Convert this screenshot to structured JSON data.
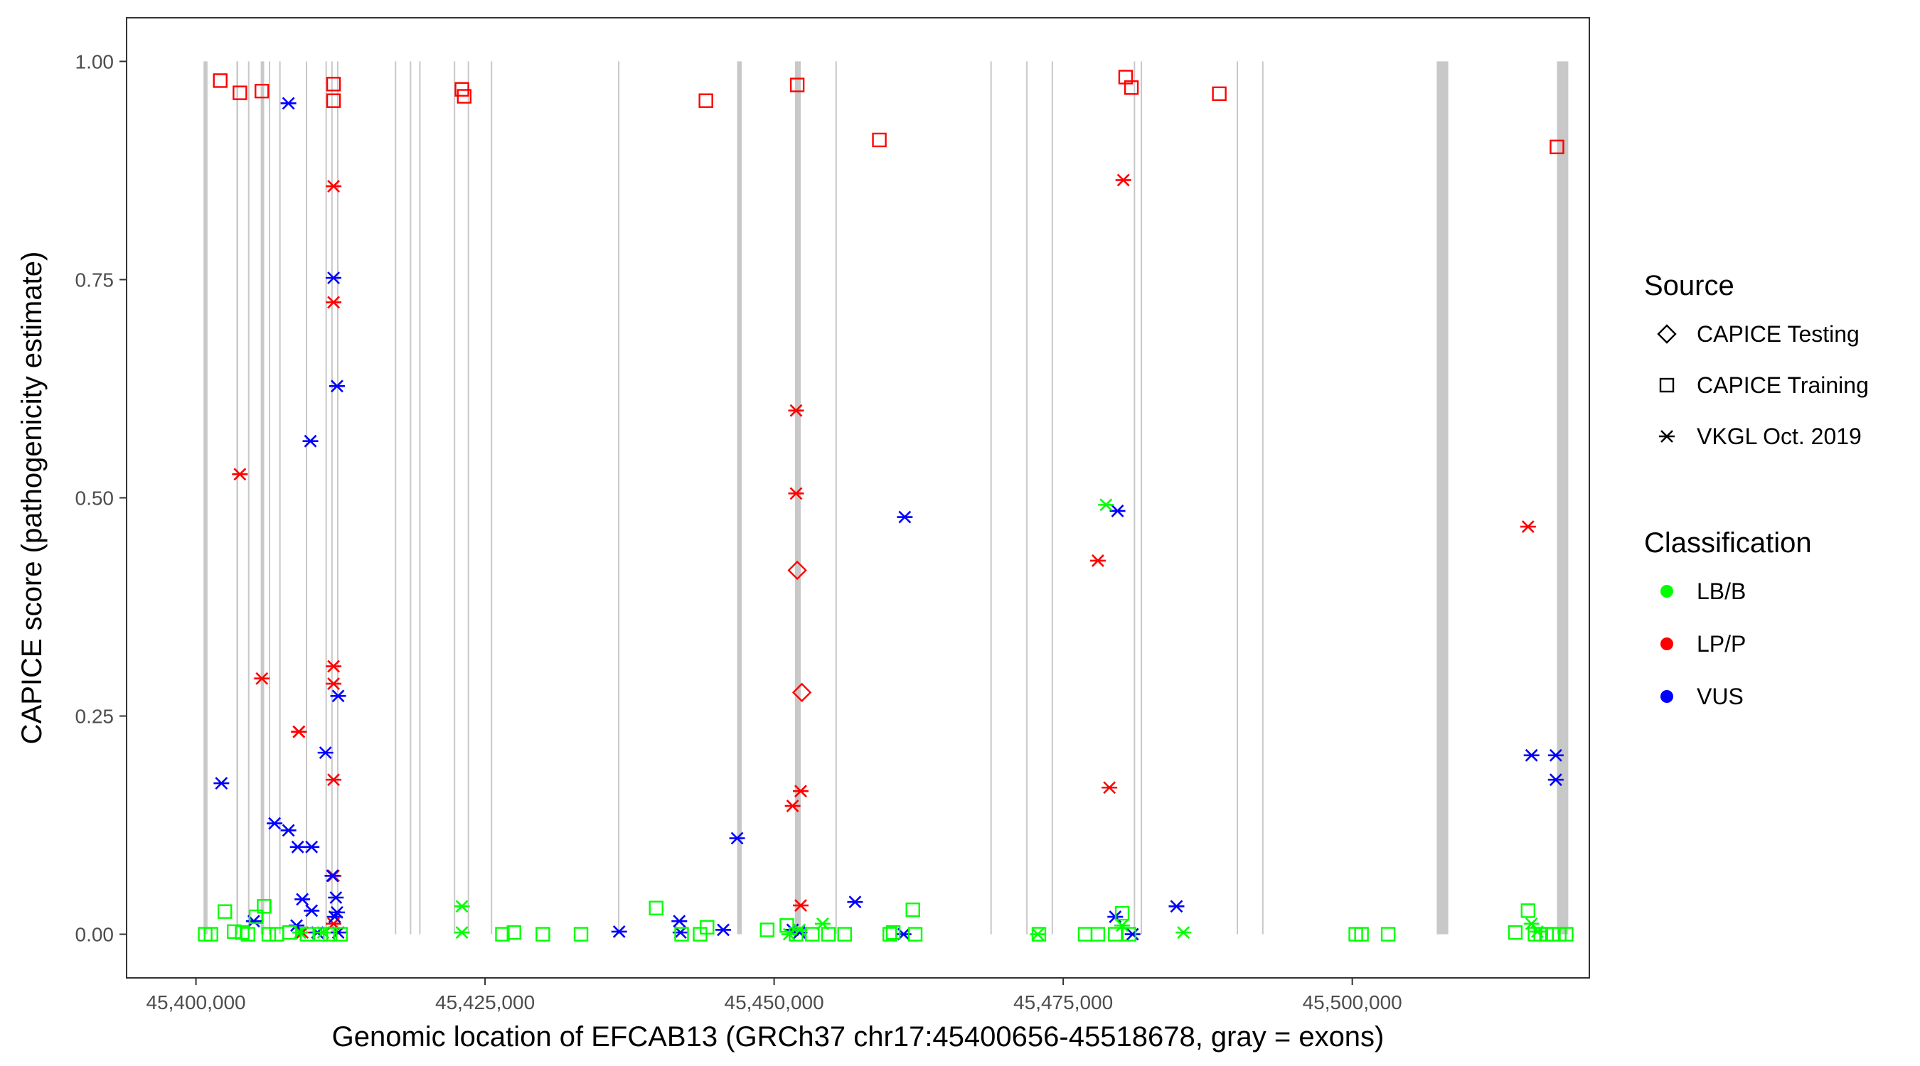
{
  "chart_data": {
    "type": "scatter",
    "title": "",
    "xlabel": "Genomic location of EFCAB13 (GRCh37 chr17:45400656-45518678, gray = exons)",
    "ylabel": "CAPICE score (pathogenicity estimate)",
    "xlim": [
      45394000,
      45520500
    ],
    "ylim": [
      -0.05,
      1.05
    ],
    "x_ticks": [
      45400000,
      45425000,
      45450000,
      45475000,
      45500000
    ],
    "x_tick_labels": [
      "45,400,000",
      "45,425,000",
      "45,450,000",
      "45,475,000",
      "45,500,000"
    ],
    "y_ticks": [
      0,
      0.25,
      0.5,
      0.75,
      1
    ],
    "y_tick_labels": [
      "0.00",
      "0.25",
      "0.50",
      "0.75",
      "1.00"
    ],
    "grid": false,
    "legend_position": "right",
    "exons": [
      [
        45400656,
        45401000
      ],
      [
        45403500,
        45403650
      ],
      [
        45404500,
        45404600
      ],
      [
        45405600,
        45405900
      ],
      [
        45406300,
        45406400
      ],
      [
        45407200,
        45407300
      ],
      [
        45409500,
        45409600
      ],
      [
        45411200,
        45411300
      ],
      [
        45411700,
        45411800
      ],
      [
        45412200,
        45412300
      ],
      [
        45417200,
        45417300
      ],
      [
        45418500,
        45418600
      ],
      [
        45419300,
        45419400
      ],
      [
        45422300,
        45422400
      ],
      [
        45423500,
        45423600
      ],
      [
        45425500,
        45425600
      ],
      [
        45436500,
        45436600
      ],
      [
        45446800,
        45447200
      ],
      [
        45451800,
        45452300
      ],
      [
        45455300,
        45455400
      ],
      [
        45468700,
        45468800
      ],
      [
        45471800,
        45471900
      ],
      [
        45474000,
        45474100
      ],
      [
        45481100,
        45481200
      ],
      [
        45481700,
        45481800
      ],
      [
        45490000,
        45490100
      ],
      [
        45492200,
        45492300
      ],
      [
        45507300,
        45508300
      ],
      [
        45517700,
        45518678
      ]
    ],
    "legend": {
      "source": {
        "title": "Source",
        "entries": [
          {
            "label": "CAPICE Testing",
            "shape": "diamond"
          },
          {
            "label": "CAPICE Training",
            "shape": "square"
          },
          {
            "label": "VKGL Oct. 2019",
            "shape": "asterisk"
          }
        ]
      },
      "classification": {
        "title": "Classification",
        "entries": [
          {
            "label": "LB/B",
            "color": "#00ff00"
          },
          {
            "label": "LP/P",
            "color": "#ff0000"
          },
          {
            "label": "VUS",
            "color": "#0000ff"
          }
        ]
      }
    },
    "series": [
      {
        "source": "CAPICE Training",
        "classification": "LP/P",
        "shape": "square",
        "color": "#ff0000",
        "points": [
          [
            45402100,
            0.978
          ],
          [
            45403800,
            0.964
          ],
          [
            45405700,
            0.966
          ],
          [
            45411900,
            0.974
          ],
          [
            45411900,
            0.955
          ],
          [
            45423000,
            0.968
          ],
          [
            45423200,
            0.96
          ],
          [
            45444100,
            0.955
          ],
          [
            45452000,
            0.973
          ],
          [
            45459100,
            0.91
          ],
          [
            45480400,
            0.982
          ],
          [
            45480900,
            0.97
          ],
          [
            45488500,
            0.963
          ],
          [
            45517700,
            0.902
          ]
        ]
      },
      {
        "source": "VKGL Oct. 2019",
        "classification": "LP/P",
        "shape": "asterisk",
        "color": "#ff0000",
        "points": [
          [
            45411900,
            0.857
          ],
          [
            45411900,
            0.724
          ],
          [
            45403800,
            0.527
          ],
          [
            45405700,
            0.293
          ],
          [
            45411900,
            0.307
          ],
          [
            45411900,
            0.287
          ],
          [
            45408900,
            0.232
          ],
          [
            45408900,
            0.232
          ],
          [
            45411900,
            0.177
          ],
          [
            45411900,
            0.067
          ],
          [
            45411900,
            0.012
          ],
          [
            45409200,
            0.002
          ],
          [
            45451900,
            0.6
          ],
          [
            45451900,
            0.505
          ],
          [
            45452300,
            0.164
          ],
          [
            45451600,
            0.147
          ],
          [
            45452300,
            0.033
          ],
          [
            45480200,
            0.864
          ],
          [
            45478000,
            0.428
          ],
          [
            45479000,
            0.168
          ],
          [
            45515200,
            0.467
          ]
        ]
      },
      {
        "source": "CAPICE Testing",
        "classification": "LP/P",
        "shape": "diamond",
        "color": "#ff0000",
        "points": [
          [
            45452000,
            0.417
          ],
          [
            45452400,
            0.277
          ]
        ]
      },
      {
        "source": "VKGL Oct. 2019",
        "classification": "VUS",
        "shape": "asterisk",
        "color": "#0000ff",
        "points": [
          [
            45408000,
            0.952
          ],
          [
            45411900,
            0.752
          ],
          [
            45412200,
            0.628
          ],
          [
            45409900,
            0.565
          ],
          [
            45412300,
            0.273
          ],
          [
            45411200,
            0.208
          ],
          [
            45402200,
            0.173
          ],
          [
            45406800,
            0.127
          ],
          [
            45408000,
            0.119
          ],
          [
            45408800,
            0.1
          ],
          [
            45410000,
            0.1
          ],
          [
            45411800,
            0.067
          ],
          [
            45409200,
            0.04
          ],
          [
            45412100,
            0.042
          ],
          [
            45410000,
            0.027
          ],
          [
            45412200,
            0.025
          ],
          [
            45412000,
            0.02
          ],
          [
            45405000,
            0.015
          ],
          [
            45408700,
            0.01
          ],
          [
            45410500,
            0.002
          ],
          [
            45412300,
            0.002
          ],
          [
            45436600,
            0.003
          ],
          [
            45441800,
            0.015
          ],
          [
            45445600,
            0.005
          ],
          [
            45441900,
            0.002
          ],
          [
            45446800,
            0.11
          ],
          [
            45451600,
            0.005
          ],
          [
            45452200,
            0.002
          ],
          [
            45457000,
            0.037
          ],
          [
            45461300,
            0.478
          ],
          [
            45461200,
            0.0
          ],
          [
            45479700,
            0.485
          ],
          [
            45479500,
            0.02
          ],
          [
            45481000,
            0.0
          ],
          [
            45484800,
            0.032
          ],
          [
            45515500,
            0.205
          ],
          [
            45517600,
            0.205
          ],
          [
            45517600,
            0.177
          ]
        ]
      },
      {
        "source": "VKGL Oct. 2019",
        "classification": "LB/B",
        "shape": "asterisk",
        "color": "#00ff00",
        "points": [
          [
            45423000,
            0.032
          ],
          [
            45423000,
            0.002
          ],
          [
            45452200,
            0.005
          ],
          [
            45454200,
            0.012
          ],
          [
            45472800,
            0.0
          ],
          [
            45478700,
            0.492
          ],
          [
            45480100,
            0.01
          ],
          [
            45485400,
            0.002
          ],
          [
            45515500,
            0.012
          ],
          [
            45516000,
            0.003
          ],
          [
            45409000,
            0.002
          ],
          [
            45411000,
            0.002
          ],
          [
            45451300,
            0.0
          ]
        ]
      },
      {
        "source": "CAPICE Training",
        "classification": "LB/B",
        "shape": "square",
        "color": "#00ff00",
        "points": [
          [
            45400800,
            0.0
          ],
          [
            45401300,
            0.0
          ],
          [
            45402500,
            0.026
          ],
          [
            45403300,
            0.003
          ],
          [
            45404000,
            0.002
          ],
          [
            45404500,
            0.0
          ],
          [
            45405200,
            0.02
          ],
          [
            45405900,
            0.032
          ],
          [
            45406300,
            0.0
          ],
          [
            45407000,
            0.0
          ],
          [
            45408100,
            0.002
          ],
          [
            45409600,
            0.0
          ],
          [
            45410800,
            0.0
          ],
          [
            45411600,
            0.0
          ],
          [
            45412500,
            0.0
          ],
          [
            45426500,
            0.0
          ],
          [
            45427500,
            0.002
          ],
          [
            45430000,
            0.0
          ],
          [
            45433300,
            0.0
          ],
          [
            45439800,
            0.03
          ],
          [
            45442000,
            0.0
          ],
          [
            45443600,
            0.0
          ],
          [
            45444200,
            0.008
          ],
          [
            45449400,
            0.005
          ],
          [
            45451100,
            0.01
          ],
          [
            45451900,
            0.0
          ],
          [
            45453300,
            0.0
          ],
          [
            45454700,
            0.0
          ],
          [
            45456100,
            0.0
          ],
          [
            45460000,
            0.0
          ],
          [
            45460300,
            0.002
          ],
          [
            45462000,
            0.028
          ],
          [
            45462200,
            0.0
          ],
          [
            45472900,
            0.0
          ],
          [
            45476900,
            0.0
          ],
          [
            45478000,
            0.0
          ],
          [
            45479500,
            0.0
          ],
          [
            45480100,
            0.024
          ],
          [
            45480700,
            0.0
          ],
          [
            45500300,
            0.0
          ],
          [
            45500800,
            0.0
          ],
          [
            45503100,
            0.0
          ],
          [
            45514100,
            0.002
          ],
          [
            45515200,
            0.027
          ],
          [
            45515800,
            0.0
          ],
          [
            45516300,
            0.0
          ],
          [
            45516800,
            0.0
          ],
          [
            45517300,
            0.0
          ],
          [
            45517900,
            0.0
          ],
          [
            45518500,
            0.0
          ]
        ]
      }
    ]
  }
}
